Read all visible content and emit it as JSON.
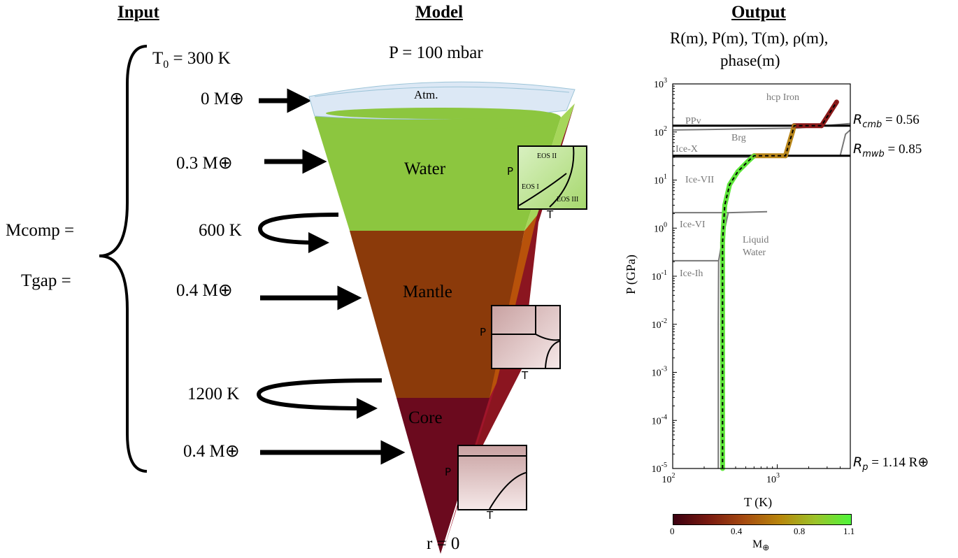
{
  "headers": {
    "input": "Input",
    "model": "Model",
    "output": "Output"
  },
  "input": {
    "t0_label": "T",
    "t0_sub": "0",
    "t0_value": " = 300 K",
    "mcomp": "Mcomp =",
    "tgap": "Tgap =",
    "rows": [
      {
        "value": "0 M",
        "unit": "⊕"
      },
      {
        "value": "0.3 M",
        "unit": "⊕"
      },
      {
        "value": "600 K",
        "unit": ""
      },
      {
        "value": "0.4 M",
        "unit": "⊕"
      },
      {
        "value": "1200 K",
        "unit": ""
      },
      {
        "value": "0.4 M",
        "unit": "⊕"
      }
    ]
  },
  "model": {
    "pressure_top": "P = 100 mbar",
    "layers": {
      "atm": "Atm.",
      "water": "Water",
      "mantle": "Mantle",
      "core": "Core"
    },
    "center": "r = 0",
    "water_inset": {
      "eos1": "EOS I",
      "eos2": "EOS II",
      "eos3": "EOS III",
      "p": "P",
      "t": "T"
    },
    "mantle_inset": {
      "p": "P",
      "t": "T"
    },
    "core_inset": {
      "p": "P",
      "t": "T"
    },
    "colors": {
      "atm": "#dce8f5",
      "water": "#8cc63f",
      "mantle": "#8b3a0a",
      "core": "#6b0a1e"
    }
  },
  "output": {
    "subtitle1": "R(m), P(m), T(m),  ρ(m),",
    "subtitle2": "phase(m)",
    "phases": {
      "hcp": "hcp Iron",
      "ppv": "PPv",
      "brg": "Brg",
      "icex": "Ice-X",
      "icevii": "Ice-VII",
      "icevi": "Ice-VI",
      "liquid1": "Liquid",
      "liquid2": "Water",
      "iceih": "Ice-Ih"
    },
    "annotations": {
      "rcmb_sym": "R",
      "rcmb_sub": "cmb",
      "rcmb_val": " = 0.56",
      "rmwb_sym": "R",
      "rmwb_sub": "mwb",
      "rmwb_val": " = 0.85",
      "rp_sym": "R",
      "rp_sub": "p",
      "rp_val": " = 1.14 R",
      "rp_unit": "⊕"
    },
    "colorbar": {
      "ticks": [
        "0",
        "0.4",
        "0.8",
        "1.1"
      ],
      "label": "M",
      "label_unit": "⊕"
    }
  },
  "chart_data": {
    "type": "line",
    "xlabel": "T (K)",
    "ylabel": "P (GPa)",
    "xscale": "log",
    "yscale": "log",
    "xlim": [
      100,
      5000
    ],
    "ylim": [
      1e-05,
      1000
    ],
    "x_ticks": [
      {
        "base": "10",
        "exp": "2"
      },
      {
        "base": "10",
        "exp": "3"
      }
    ],
    "y_ticks": [
      {
        "base": "10",
        "exp": "-5"
      },
      {
        "base": "10",
        "exp": "-4"
      },
      {
        "base": "10",
        "exp": "-3"
      },
      {
        "base": "10",
        "exp": "-2"
      },
      {
        "base": "10",
        "exp": "-1"
      },
      {
        "base": "10",
        "exp": "0"
      },
      {
        "base": "10",
        "exp": "1"
      },
      {
        "base": "10",
        "exp": "2"
      },
      {
        "base": "10",
        "exp": "3"
      }
    ],
    "boundaries": {
      "cmb_pressure": 135,
      "mwb_pressure": 32
    },
    "profile": [
      {
        "T": 300,
        "P": 1e-05
      },
      {
        "T": 300,
        "P": 0.0001
      },
      {
        "T": 300,
        "P": 0.001
      },
      {
        "T": 300,
        "P": 0.01
      },
      {
        "T": 300,
        "P": 0.1
      },
      {
        "T": 300,
        "P": 0.5
      },
      {
        "T": 305,
        "P": 1
      },
      {
        "T": 315,
        "P": 3
      },
      {
        "T": 350,
        "P": 8
      },
      {
        "T": 420,
        "P": 15
      },
      {
        "T": 520,
        "P": 24
      },
      {
        "T": 600,
        "P": 32
      },
      {
        "T": 1200,
        "P": 32
      },
      {
        "T": 1290,
        "P": 55
      },
      {
        "T": 1400,
        "P": 100
      },
      {
        "T": 1450,
        "P": 135
      },
      {
        "T": 2650,
        "P": 135
      },
      {
        "T": 3100,
        "P": 230
      },
      {
        "T": 3700,
        "P": 420
      }
    ]
  }
}
